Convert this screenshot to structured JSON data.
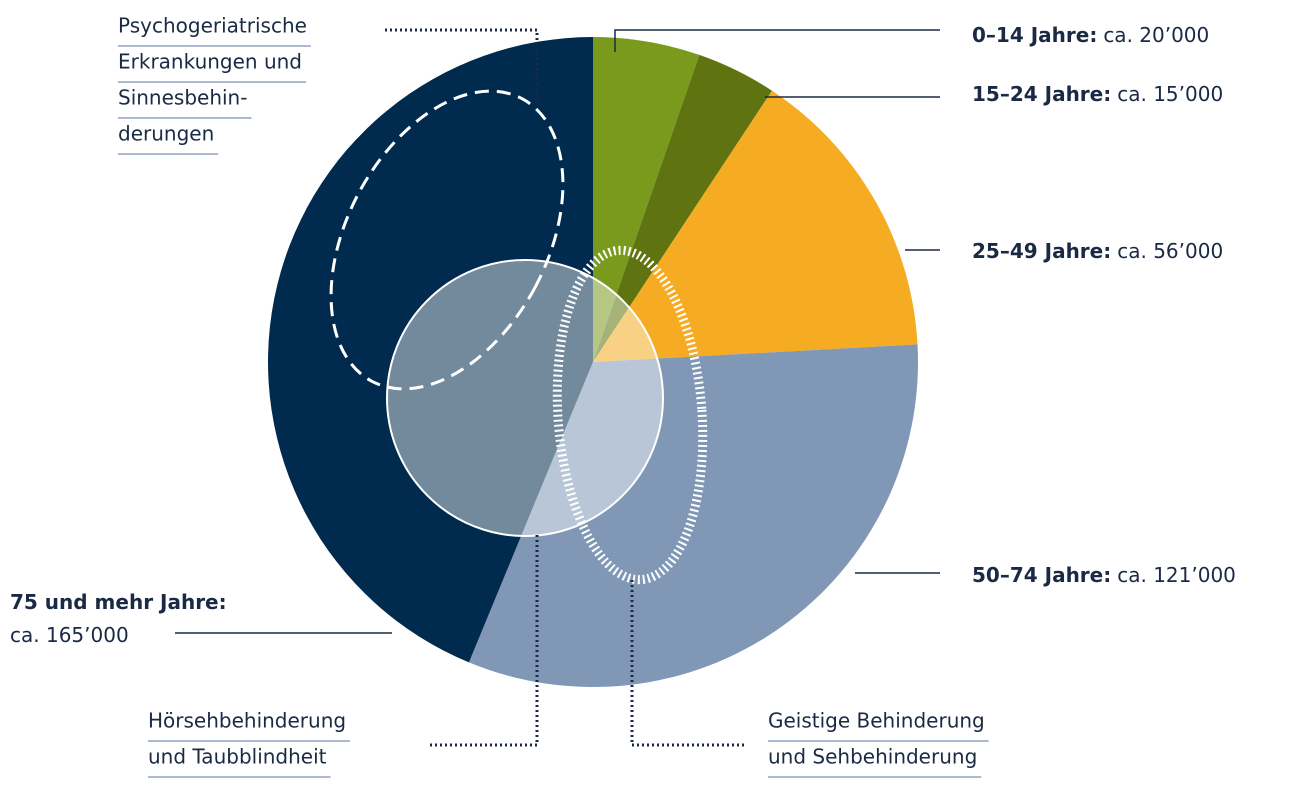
{
  "chart_data": {
    "type": "pie",
    "categories": [
      "0–14 Jahre:",
      "15–24 Jahre:",
      "25–49 Jahre:",
      "50–74 Jahre:",
      "75 und mehr Jahre:"
    ],
    "values": [
      20000,
      15000,
      56000,
      121000,
      165000
    ],
    "value_labels": [
      "ca. 20’000",
      "ca. 15’000",
      "ca. 56’000",
      "ca. 121’000",
      "ca. 165’000"
    ],
    "colors": [
      "#7a9a1e",
      "#5f7410",
      "#f5ac22",
      "#8098b6",
      "#002b4e"
    ],
    "annotations": [
      [
        "Psychogeriatrische",
        "Erkrankungen und",
        "Sinnesbehin-",
        "derungen"
      ],
      [
        "Hörsehbehinderung",
        "und Taubblindheit"
      ],
      [
        "Geistige Behinderung",
        "und Sehbehinderung"
      ]
    ]
  }
}
